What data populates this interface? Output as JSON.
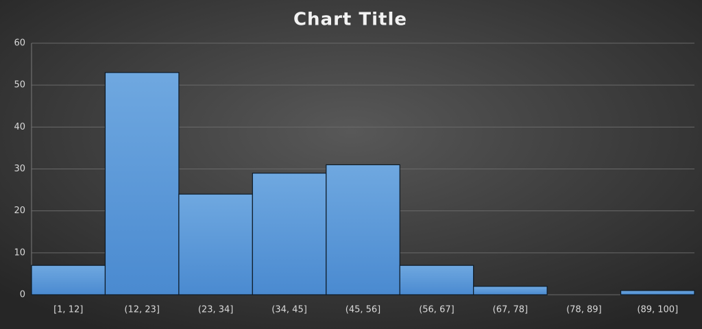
{
  "chart_data": {
    "type": "bar",
    "title": "Chart Title",
    "categories": [
      "[1, 12]",
      "(12, 23]",
      "(23, 34]",
      "(34, 45]",
      "(45, 56]",
      "(56, 67]",
      "(67, 78]",
      "(78, 89]",
      "(89, 100]"
    ],
    "values": [
      7,
      53,
      24,
      29,
      31,
      7,
      2,
      0,
      1
    ],
    "color": "#5b9bd5",
    "ylim": [
      0,
      60
    ],
    "yticks": [
      0,
      10,
      20,
      30,
      40,
      50,
      60
    ],
    "grid": true
  }
}
